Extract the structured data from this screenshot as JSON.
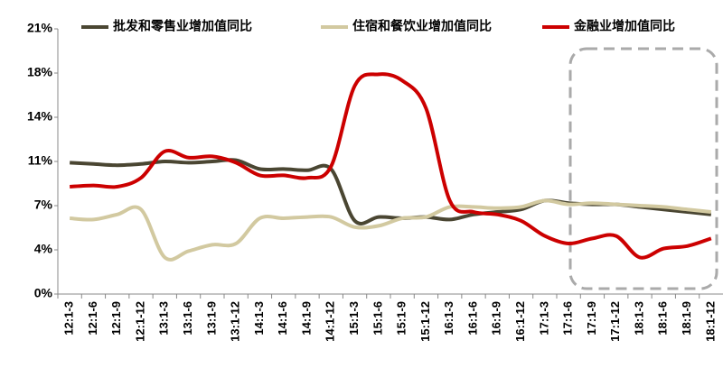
{
  "chart_data": {
    "type": "line",
    "categories": [
      "12:1-3",
      "12:1-6",
      "12:1-9",
      "12:1-12",
      "13:1-3",
      "13:1-6",
      "13:1-9",
      "13:1-12",
      "14:1-3",
      "14:1-6",
      "14:1-9",
      "14:1-12",
      "15:1-3",
      "15:1-6",
      "15:1-9",
      "15:1-12",
      "16:1-3",
      "16:1-6",
      "16:1-9",
      "16:1-12",
      "17:1-3",
      "17:1-6",
      "17:1-9",
      "17:1-12",
      "18:1-3",
      "18:1-6",
      "18:1-9",
      "18:1-12"
    ],
    "series": [
      {
        "name": "批发和零售业增加值同比",
        "color": "#4a4632",
        "values": [
          10.4,
          10.3,
          10.2,
          10.3,
          10.5,
          10.4,
          10.5,
          10.6,
          9.9,
          9.9,
          9.8,
          9.9,
          5.8,
          6.1,
          6.0,
          6.1,
          5.9,
          6.3,
          6.5,
          6.7,
          7.4,
          7.2,
          7.1,
          7.1,
          6.9,
          6.7,
          6.5,
          6.3
        ]
      },
      {
        "name": "住宿和餐饮业增加值同比",
        "color": "#d2c9a0",
        "values": [
          6.0,
          5.9,
          6.3,
          6.7,
          2.9,
          3.4,
          3.9,
          4.0,
          6.0,
          6.0,
          6.1,
          6.1,
          5.3,
          5.4,
          6.0,
          6.1,
          6.9,
          6.9,
          6.8,
          6.9,
          7.4,
          7.1,
          7.2,
          7.1,
          7.0,
          6.9,
          6.7,
          6.5
        ]
      },
      {
        "name": "金融业增加值同比",
        "color": "#cc0000",
        "values": [
          8.5,
          8.6,
          8.5,
          9.2,
          11.3,
          10.8,
          10.9,
          10.4,
          9.4,
          9.4,
          9.2,
          10.1,
          16.5,
          17.4,
          16.9,
          14.7,
          7.4,
          6.5,
          6.3,
          5.8,
          4.6,
          4.0,
          4.4,
          4.6,
          2.9,
          3.6,
          3.8,
          4.4
        ]
      }
    ],
    "ylim": [
      0,
      21
    ],
    "yticks": [
      {
        "value": 0,
        "label": "0%"
      },
      {
        "value": 3.5,
        "label": "4%"
      },
      {
        "value": 7,
        "label": "7%"
      },
      {
        "value": 10.5,
        "label": "11%"
      },
      {
        "value": 14,
        "label": "14%"
      },
      {
        "value": 17.5,
        "label": "18%"
      },
      {
        "value": 21,
        "label": "21%"
      }
    ],
    "grid": false
  }
}
